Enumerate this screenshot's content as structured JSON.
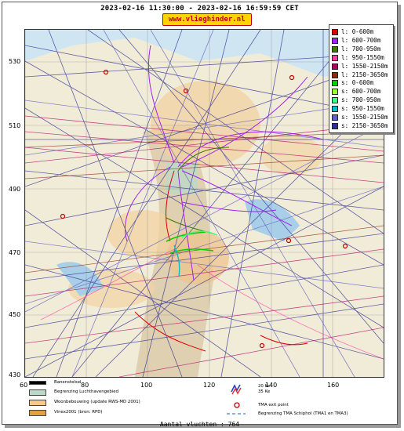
{
  "header": {
    "title": "2023-02-16 11:30:00 - 2023-02-16 16:59:59 CET",
    "site": "www.vlieghinder.nl"
  },
  "axes": {
    "y": [
      "530",
      "510",
      "490",
      "470",
      "450",
      "430"
    ],
    "x": [
      "60",
      "80",
      "100",
      "120",
      "140",
      "160"
    ]
  },
  "legend": [
    {
      "label": "l: 0-600m",
      "color": "#e00000"
    },
    {
      "label": "l: 600-700m",
      "color": "#a020f0"
    },
    {
      "label": "l: 700-950m",
      "color": "#3c7a00"
    },
    {
      "label": "l: 950-1550m",
      "color": "#ff3fa0"
    },
    {
      "label": "l: 1550-2150m",
      "color": "#b00060"
    },
    {
      "label": "l: 2150-3650m",
      "color": "#8b2a10"
    },
    {
      "label": "s: 0-600m",
      "color": "#00d000"
    },
    {
      "label": "s: 600-700m",
      "color": "#99ff33"
    },
    {
      "label": "s: 700-950m",
      "color": "#33ff88"
    },
    {
      "label": "s: 950-1550m",
      "color": "#00c0c0"
    },
    {
      "label": "s: 1550-2150m",
      "color": "#6060c0"
    },
    {
      "label": "s: 2150-3650m",
      "color": "#303090"
    }
  ],
  "footer": {
    "runways": "Banenstelsel",
    "airport_boundary": "Begrenzing Luchthavengebied",
    "housing": "Woonbebouwing (update RWS-MD 2001)",
    "vinex": "Vinex2001 (bron: RPD)",
    "kv_top": "20 Ke",
    "kv_bottom": "35 Ke",
    "tma_exit": "TMA exit point",
    "tma_border": "Begrenzing TMA Schiphol  (TMA1 en TMA3)",
    "colors": {
      "runway": "#000000",
      "boundary": "#bcd8c8",
      "housing": "#f5c98a",
      "vinex": "#e0a040"
    }
  },
  "count": "Aantal vluchten : 764"
}
